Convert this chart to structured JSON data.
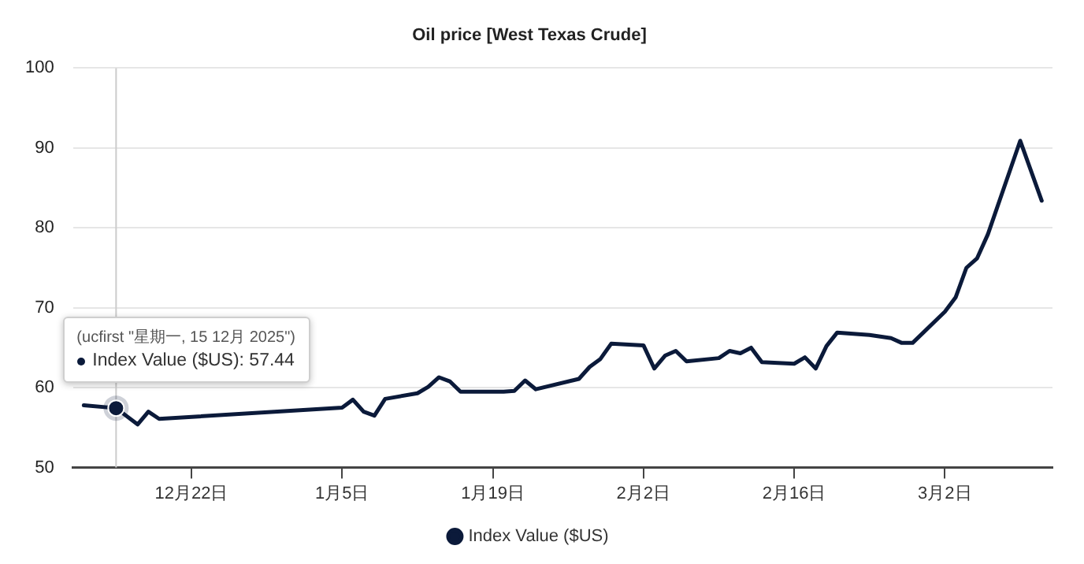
{
  "chart_data": {
    "type": "line",
    "title": "Oil price [West Texas Crude]",
    "x": [
      "2025-12-12",
      "2025-12-15",
      "2025-12-17",
      "2025-12-18",
      "2025-12-19",
      "2026-01-05",
      "2026-01-06",
      "2026-01-07",
      "2026-01-08",
      "2026-01-09",
      "2026-01-12",
      "2026-01-13",
      "2026-01-14",
      "2026-01-15",
      "2026-01-16",
      "2026-01-20",
      "2026-01-21",
      "2026-01-22",
      "2026-01-23",
      "2026-01-27",
      "2026-01-28",
      "2026-01-29",
      "2026-01-30",
      "2026-02-02",
      "2026-02-03",
      "2026-02-04",
      "2026-02-05",
      "2026-02-06",
      "2026-02-09",
      "2026-02-10",
      "2026-02-11",
      "2026-02-12",
      "2026-02-13",
      "2026-02-16",
      "2026-02-17",
      "2026-02-18",
      "2026-02-19",
      "2026-02-20",
      "2026-02-23",
      "2026-02-25",
      "2026-02-26",
      "2026-02-27",
      "2026-03-02",
      "2026-03-03",
      "2026-03-04",
      "2026-03-05",
      "2026-03-06",
      "2026-03-09",
      "2026-03-11"
    ],
    "series": [
      {
        "name": "Index Value ($US)",
        "color": "#0b1a3a",
        "values": [
          57.8,
          57.44,
          55.4,
          57.0,
          56.1,
          57.5,
          58.5,
          57.0,
          56.5,
          58.6,
          59.3,
          60.1,
          61.3,
          60.8,
          59.5,
          59.5,
          59.6,
          60.9,
          59.8,
          61.1,
          62.6,
          63.6,
          65.5,
          65.3,
          62.4,
          64.0,
          64.6,
          63.3,
          63.7,
          64.6,
          64.3,
          65.0,
          63.2,
          63.0,
          63.8,
          62.4,
          65.2,
          66.9,
          66.6,
          66.2,
          65.6,
          65.6,
          69.5,
          71.3,
          75.0,
          76.2,
          79.2,
          90.9,
          83.4
        ]
      }
    ],
    "xlim": [
      "2025-12-11",
      "2026-03-12"
    ],
    "xticks": [
      {
        "value": "2025-12-22",
        "label": "12月22日"
      },
      {
        "value": "2026-01-05",
        "label": "1月5日"
      },
      {
        "value": "2026-01-19",
        "label": "1月19日"
      },
      {
        "value": "2026-02-02",
        "label": "2月2日"
      },
      {
        "value": "2026-02-16",
        "label": "2月16日"
      },
      {
        "value": "2026-03-02",
        "label": "3月2日"
      }
    ],
    "ylim": [
      50,
      100
    ],
    "yticks": [
      50,
      60,
      70,
      80,
      90,
      100
    ],
    "grid": "y",
    "legend": "bottom",
    "marker": "none",
    "line_style": "solid",
    "ref_lines": [
      {
        "axis": "x",
        "value": "2025-12-15",
        "color": "#cccccc"
      }
    ],
    "annotations": [
      "(ucfirst \"星期一, 15 12月 2025\")",
      "Index Value ($US): 57.44"
    ]
  }
}
